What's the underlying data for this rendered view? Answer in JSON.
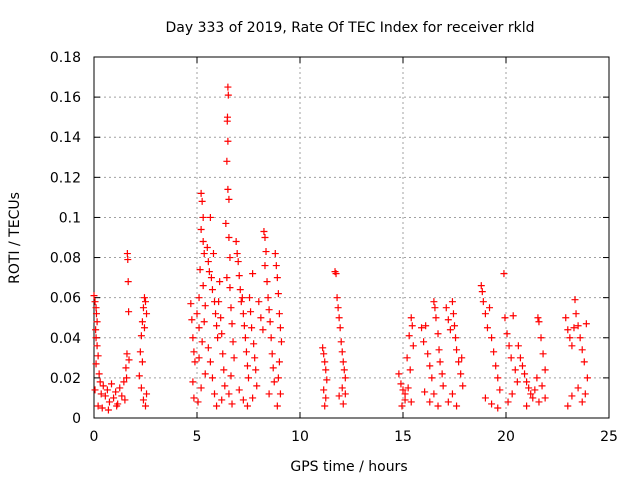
{
  "chart_data": {
    "type": "scatter",
    "title": "Day 333 of 2019, Rate Of TEC Index for receiver rkld",
    "xlabel": "GPS time / hours",
    "ylabel": "ROTI / TECUs",
    "xlim": [
      0,
      25
    ],
    "ylim": [
      0,
      0.18
    ],
    "xticks": [
      0,
      5,
      10,
      15,
      20,
      25
    ],
    "xtick_labels": [
      "0",
      "5",
      "10",
      "15",
      "20",
      "25"
    ],
    "yticks": [
      0,
      0.02,
      0.04,
      0.06,
      0.08,
      0.1,
      0.12,
      0.14,
      0.16,
      0.18
    ],
    "ytick_labels": [
      "0",
      "0.02",
      "0.04",
      "0.06",
      "0.08",
      "0.1",
      "0.12",
      "0.14",
      "0.16",
      "0.18"
    ],
    "grid": true,
    "marker": "+",
    "color": "#ff0000",
    "series": [
      {
        "name": "ROTI",
        "points": [
          [
            0.0,
            0.061
          ],
          [
            0.05,
            0.058
          ],
          [
            0.1,
            0.055
          ],
          [
            0.12,
            0.052
          ],
          [
            0.15,
            0.048
          ],
          [
            0.08,
            0.044
          ],
          [
            0.1,
            0.04
          ],
          [
            0.15,
            0.036
          ],
          [
            0.2,
            0.031
          ],
          [
            0.1,
            0.027
          ],
          [
            0.25,
            0.022
          ],
          [
            0.3,
            0.018
          ],
          [
            0.05,
            0.014
          ],
          [
            0.35,
            0.012
          ],
          [
            0.45,
            0.016
          ],
          [
            0.55,
            0.011
          ],
          [
            0.65,
            0.014
          ],
          [
            0.75,
            0.008
          ],
          [
            0.85,
            0.017
          ],
          [
            0.95,
            0.01
          ],
          [
            1.05,
            0.013
          ],
          [
            1.15,
            0.007
          ],
          [
            1.25,
            0.015
          ],
          [
            1.35,
            0.011
          ],
          [
            1.45,
            0.018
          ],
          [
            1.55,
            0.025
          ],
          [
            1.6,
            0.032
          ],
          [
            1.62,
            0.082
          ],
          [
            1.64,
            0.079
          ],
          [
            1.66,
            0.068
          ],
          [
            1.68,
            0.053
          ],
          [
            1.7,
            0.029
          ],
          [
            1.58,
            0.02
          ],
          [
            1.5,
            0.009
          ],
          [
            0.2,
            0.006
          ],
          [
            0.4,
            0.005
          ],
          [
            0.7,
            0.004
          ],
          [
            1.1,
            0.006
          ],
          [
            2.2,
            0.021
          ],
          [
            2.25,
            0.033
          ],
          [
            2.3,
            0.041
          ],
          [
            2.35,
            0.048
          ],
          [
            2.4,
            0.055
          ],
          [
            2.45,
            0.06
          ],
          [
            2.5,
            0.058
          ],
          [
            2.55,
            0.052
          ],
          [
            2.45,
            0.045
          ],
          [
            2.35,
            0.028
          ],
          [
            2.3,
            0.015
          ],
          [
            2.4,
            0.009
          ],
          [
            2.5,
            0.006
          ],
          [
            2.55,
            0.012
          ],
          [
            4.7,
            0.057
          ],
          [
            4.75,
            0.049
          ],
          [
            4.8,
            0.04
          ],
          [
            4.85,
            0.033
          ],
          [
            4.9,
            0.028
          ],
          [
            4.8,
            0.018
          ],
          [
            4.85,
            0.01
          ],
          [
            5.0,
            0.052
          ],
          [
            5.1,
            0.045
          ],
          [
            5.2,
            0.112
          ],
          [
            5.25,
            0.108
          ],
          [
            5.3,
            0.1
          ],
          [
            5.2,
            0.094
          ],
          [
            5.3,
            0.088
          ],
          [
            5.35,
            0.082
          ],
          [
            5.15,
            0.074
          ],
          [
            5.3,
            0.066
          ],
          [
            5.1,
            0.06
          ],
          [
            5.4,
            0.056
          ],
          [
            5.35,
            0.048
          ],
          [
            5.25,
            0.038
          ],
          [
            5.1,
            0.03
          ],
          [
            5.4,
            0.022
          ],
          [
            5.2,
            0.015
          ],
          [
            5.05,
            0.008
          ],
          [
            5.5,
            0.085
          ],
          [
            5.55,
            0.078
          ],
          [
            5.6,
            0.073
          ],
          [
            5.65,
            0.1
          ],
          [
            5.7,
            0.07
          ],
          [
            5.75,
            0.064
          ],
          [
            5.8,
            0.082
          ],
          [
            5.85,
            0.058
          ],
          [
            5.9,
            0.052
          ],
          [
            5.95,
            0.046
          ],
          [
            6.0,
            0.04
          ],
          [
            5.55,
            0.035
          ],
          [
            5.65,
            0.028
          ],
          [
            5.75,
            0.02
          ],
          [
            5.85,
            0.012
          ],
          [
            5.95,
            0.006
          ],
          [
            6.05,
            0.058
          ],
          [
            6.1,
            0.068
          ],
          [
            6.15,
            0.05
          ],
          [
            6.2,
            0.042
          ],
          [
            6.25,
            0.032
          ],
          [
            6.3,
            0.024
          ],
          [
            6.35,
            0.016
          ],
          [
            6.2,
            0.009
          ],
          [
            6.4,
            0.097
          ],
          [
            6.45,
            0.07
          ],
          [
            6.5,
            0.165
          ],
          [
            6.52,
            0.161
          ],
          [
            6.48,
            0.15
          ],
          [
            6.47,
            0.148
          ],
          [
            6.5,
            0.138
          ],
          [
            6.45,
            0.128
          ],
          [
            6.5,
            0.114
          ],
          [
            6.55,
            0.109
          ],
          [
            6.55,
            0.09
          ],
          [
            6.6,
            0.08
          ],
          [
            6.6,
            0.065
          ],
          [
            6.65,
            0.055
          ],
          [
            6.7,
            0.047
          ],
          [
            6.75,
            0.038
          ],
          [
            6.8,
            0.03
          ],
          [
            6.65,
            0.021
          ],
          [
            6.55,
            0.012
          ],
          [
            6.7,
            0.007
          ],
          [
            6.9,
            0.088
          ],
          [
            6.95,
            0.082
          ],
          [
            7.0,
            0.078
          ],
          [
            7.05,
            0.071
          ],
          [
            7.1,
            0.064
          ],
          [
            7.15,
            0.058
          ],
          [
            7.2,
            0.06
          ],
          [
            7.25,
            0.052
          ],
          [
            7.3,
            0.046
          ],
          [
            7.35,
            0.04
          ],
          [
            7.4,
            0.033
          ],
          [
            7.45,
            0.026
          ],
          [
            7.5,
            0.02
          ],
          [
            7.05,
            0.014
          ],
          [
            7.25,
            0.009
          ],
          [
            7.45,
            0.006
          ],
          [
            7.55,
            0.06
          ],
          [
            7.6,
            0.053
          ],
          [
            7.65,
            0.045
          ],
          [
            7.7,
            0.072
          ],
          [
            7.75,
            0.037
          ],
          [
            7.8,
            0.03
          ],
          [
            7.85,
            0.024
          ],
          [
            7.9,
            0.016
          ],
          [
            7.7,
            0.01
          ],
          [
            8.0,
            0.058
          ],
          [
            8.1,
            0.05
          ],
          [
            8.2,
            0.044
          ],
          [
            8.25,
            0.093
          ],
          [
            8.3,
            0.09
          ],
          [
            8.35,
            0.083
          ],
          [
            8.3,
            0.076
          ],
          [
            8.4,
            0.068
          ],
          [
            8.45,
            0.06
          ],
          [
            8.5,
            0.054
          ],
          [
            8.55,
            0.048
          ],
          [
            8.6,
            0.04
          ],
          [
            8.65,
            0.032
          ],
          [
            8.7,
            0.025
          ],
          [
            8.75,
            0.018
          ],
          [
            8.5,
            0.012
          ],
          [
            8.8,
            0.082
          ],
          [
            8.85,
            0.076
          ],
          [
            8.9,
            0.07
          ],
          [
            8.95,
            0.062
          ],
          [
            9.0,
            0.052
          ],
          [
            9.05,
            0.045
          ],
          [
            9.1,
            0.038
          ],
          [
            9.0,
            0.028
          ],
          [
            8.95,
            0.02
          ],
          [
            9.05,
            0.012
          ],
          [
            8.9,
            0.006
          ],
          [
            11.1,
            0.035
          ],
          [
            11.15,
            0.032
          ],
          [
            11.2,
            0.028
          ],
          [
            11.25,
            0.024
          ],
          [
            11.3,
            0.019
          ],
          [
            11.15,
            0.014
          ],
          [
            11.25,
            0.01
          ],
          [
            11.2,
            0.006
          ],
          [
            11.7,
            0.073
          ],
          [
            11.75,
            0.072
          ],
          [
            11.8,
            0.06
          ],
          [
            11.85,
            0.055
          ],
          [
            11.9,
            0.05
          ],
          [
            11.95,
            0.045
          ],
          [
            12.0,
            0.038
          ],
          [
            12.05,
            0.033
          ],
          [
            12.1,
            0.028
          ],
          [
            12.15,
            0.024
          ],
          [
            12.2,
            0.02
          ],
          [
            12.05,
            0.015
          ],
          [
            11.9,
            0.011
          ],
          [
            12.1,
            0.007
          ],
          [
            12.2,
            0.012
          ],
          [
            14.8,
            0.022
          ],
          [
            14.9,
            0.017
          ],
          [
            15.0,
            0.014
          ],
          [
            15.1,
            0.012
          ],
          [
            15.2,
            0.03
          ],
          [
            15.3,
            0.041
          ],
          [
            15.4,
            0.05
          ],
          [
            15.45,
            0.046
          ],
          [
            15.5,
            0.036
          ],
          [
            15.35,
            0.024
          ],
          [
            15.25,
            0.015
          ],
          [
            15.1,
            0.009
          ],
          [
            14.95,
            0.006
          ],
          [
            15.4,
            0.008
          ],
          [
            15.9,
            0.045
          ],
          [
            16.0,
            0.038
          ],
          [
            16.1,
            0.046
          ],
          [
            16.2,
            0.032
          ],
          [
            16.3,
            0.026
          ],
          [
            16.4,
            0.02
          ],
          [
            16.5,
            0.058
          ],
          [
            16.55,
            0.055
          ],
          [
            16.6,
            0.05
          ],
          [
            16.7,
            0.042
          ],
          [
            16.75,
            0.034
          ],
          [
            16.8,
            0.028
          ],
          [
            16.9,
            0.022
          ],
          [
            16.95,
            0.016
          ],
          [
            16.5,
            0.012
          ],
          [
            16.3,
            0.008
          ],
          [
            16.7,
            0.006
          ],
          [
            16.05,
            0.013
          ],
          [
            17.1,
            0.055
          ],
          [
            17.2,
            0.049
          ],
          [
            17.3,
            0.044
          ],
          [
            17.4,
            0.058
          ],
          [
            17.45,
            0.052
          ],
          [
            17.5,
            0.046
          ],
          [
            17.55,
            0.04
          ],
          [
            17.6,
            0.034
          ],
          [
            17.7,
            0.028
          ],
          [
            17.8,
            0.022
          ],
          [
            17.9,
            0.016
          ],
          [
            17.4,
            0.012
          ],
          [
            17.2,
            0.008
          ],
          [
            17.6,
            0.006
          ],
          [
            17.85,
            0.03
          ],
          [
            18.8,
            0.066
          ],
          [
            18.85,
            0.063
          ],
          [
            18.9,
            0.058
          ],
          [
            19.0,
            0.052
          ],
          [
            19.1,
            0.045
          ],
          [
            19.2,
            0.055
          ],
          [
            19.3,
            0.04
          ],
          [
            19.4,
            0.033
          ],
          [
            19.5,
            0.026
          ],
          [
            19.6,
            0.02
          ],
          [
            19.7,
            0.014
          ],
          [
            19.0,
            0.01
          ],
          [
            19.3,
            0.007
          ],
          [
            19.6,
            0.005
          ],
          [
            19.9,
            0.072
          ],
          [
            19.95,
            0.05
          ],
          [
            20.05,
            0.042
          ],
          [
            20.15,
            0.036
          ],
          [
            20.25,
            0.03
          ],
          [
            20.35,
            0.051
          ],
          [
            20.45,
            0.024
          ],
          [
            20.55,
            0.018
          ],
          [
            20.3,
            0.012
          ],
          [
            20.1,
            0.008
          ],
          [
            20.6,
            0.036
          ],
          [
            20.7,
            0.03
          ],
          [
            20.8,
            0.026
          ],
          [
            20.9,
            0.022
          ],
          [
            21.0,
            0.018
          ],
          [
            21.1,
            0.015
          ],
          [
            21.2,
            0.012
          ],
          [
            21.3,
            0.01
          ],
          [
            21.4,
            0.014
          ],
          [
            21.5,
            0.02
          ],
          [
            21.55,
            0.05
          ],
          [
            21.6,
            0.048
          ],
          [
            21.7,
            0.04
          ],
          [
            21.8,
            0.032
          ],
          [
            21.9,
            0.024
          ],
          [
            21.75,
            0.016
          ],
          [
            21.6,
            0.008
          ],
          [
            21.0,
            0.006
          ],
          [
            21.9,
            0.01
          ],
          [
            22.9,
            0.05
          ],
          [
            23.0,
            0.044
          ],
          [
            23.1,
            0.04
          ],
          [
            23.2,
            0.036
          ],
          [
            23.3,
            0.045
          ],
          [
            23.35,
            0.059
          ],
          [
            23.4,
            0.052
          ],
          [
            23.5,
            0.046
          ],
          [
            23.6,
            0.04
          ],
          [
            23.7,
            0.034
          ],
          [
            23.8,
            0.028
          ],
          [
            23.9,
            0.047
          ],
          [
            23.95,
            0.02
          ],
          [
            23.5,
            0.015
          ],
          [
            23.2,
            0.011
          ],
          [
            23.7,
            0.008
          ],
          [
            23.0,
            0.006
          ],
          [
            23.85,
            0.012
          ]
        ]
      }
    ]
  }
}
